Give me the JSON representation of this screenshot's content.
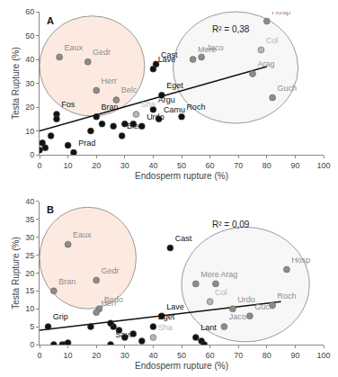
{
  "chart_data": [
    {
      "type": "scatter",
      "title": "A",
      "annotation": "R² = 0,38",
      "x_label": "Endosperm rupture (%)",
      "y_label": "Testa Rupture (%)",
      "x": [
        0,
        2,
        1,
        4,
        7,
        17,
        20,
        27,
        6,
        6,
        20,
        12,
        10,
        18,
        22,
        26,
        30,
        33,
        34,
        29,
        36,
        42,
        40,
        43,
        40,
        41,
        50,
        54,
        57,
        78,
        80,
        75,
        82
      ],
      "y": [
        2,
        3,
        5,
        8,
        41,
        39,
        27,
        23,
        17,
        15,
        16,
        1,
        4,
        10,
        13,
        12,
        13,
        13,
        17,
        8,
        12,
        15,
        19,
        25,
        36,
        38,
        16,
        40,
        41,
        44,
        56,
        34,
        24
      ],
      "labels": [
        null,
        null,
        null,
        null,
        "Eaux",
        "Gedr",
        "Herr",
        "Belc",
        "Fos",
        null,
        "Bran",
        "Prad",
        null,
        null,
        null,
        null,
        null,
        null,
        "Sha",
        "Bier",
        "Urdo",
        "Camu",
        "Argu",
        "Eget",
        "Lave",
        "Cast",
        "Roch",
        "Mere",
        "Jaco",
        "Col",
        "Hosp",
        "Arag",
        "Guch"
      ],
      "colors": [
        "#111111",
        "#111111",
        "#111111",
        "#111111",
        "#8c8c8c",
        "#8c8c8c",
        "#8c8c8c",
        "#8c8c8c",
        "#111111",
        "#111111",
        "#111111",
        "#111111",
        "#111111",
        "#111111",
        "#111111",
        "#111111",
        "#111111",
        "#111111",
        "#b5b5b5",
        "#111111",
        "#111111",
        "#111111",
        "#111111",
        "#111111",
        "#111111",
        "#111111",
        "#111111",
        "#8c8c8c",
        "#8c8c8c",
        "#b5b5b5",
        "#8c8c8c",
        "#8c8c8c",
        "#8c8c8c"
      ],
      "trend": {
        "x": [
          0,
          80
        ],
        "y": [
          10,
          37
        ]
      },
      "xlim": [
        0,
        100
      ],
      "xticks": [
        0,
        10,
        20,
        30,
        40,
        50,
        60,
        70,
        80,
        90,
        100
      ],
      "ylim": [
        0,
        60
      ],
      "yticks": [
        0,
        10,
        20,
        30,
        40,
        50,
        60
      ],
      "grid": false
    },
    {
      "type": "scatter",
      "title": "B",
      "annotation": "R² = 0,09",
      "x_label": "Endosperm rupture (%)",
      "y_label": "Testa Rupture (%)",
      "x": [
        10,
        20,
        5,
        21,
        20,
        3,
        5,
        8,
        9,
        10,
        25,
        43,
        46,
        40,
        40,
        26,
        30,
        33,
        36,
        18,
        25,
        28,
        55,
        57,
        58,
        55,
        62,
        60,
        68,
        65,
        74,
        82,
        87
      ],
      "y": [
        28,
        18,
        15,
        10,
        9,
        5,
        0,
        0,
        0,
        0.5,
        0,
        8,
        27,
        5,
        2,
        5,
        2,
        3,
        1,
        5,
        6,
        4,
        2,
        1,
        0,
        17,
        17,
        12,
        10,
        5,
        8,
        11,
        21
      ],
      "labels": [
        "Eaux",
        "Gedr",
        "Bran",
        "Bedo",
        "Herr",
        "Grip",
        null,
        null,
        null,
        null,
        "Savi",
        "Lave",
        "Cast",
        "Eget",
        "Sha",
        null,
        null,
        null,
        null,
        null,
        null,
        null,
        "Lant",
        null,
        null,
        "Mere",
        "Arag",
        "Col",
        "Urdo",
        "Jaco",
        "Guch",
        "Roch",
        "Hosp"
      ],
      "colors": [
        "#8c8c8c",
        "#8c8c8c",
        "#8c8c8c",
        "#8c8c8c",
        "#8c8c8c",
        "#111111",
        "#111111",
        "#111111",
        "#111111",
        "#111111",
        "#111111",
        "#111111",
        "#111111",
        "#111111",
        "#b5b5b5",
        "#111111",
        "#111111",
        "#111111",
        "#111111",
        "#111111",
        "#111111",
        "#111111",
        "#111111",
        "#111111",
        "#111111",
        "#8c8c8c",
        "#8c8c8c",
        "#b5b5b5",
        "#8c8c8c",
        "#8c8c8c",
        "#8c8c8c",
        "#8c8c8c",
        "#8c8c8c"
      ],
      "trend": {
        "x": [
          0,
          85
        ],
        "y": [
          4,
          12
        ]
      },
      "xlim": [
        0,
        100
      ],
      "xticks": [
        0,
        10,
        20,
        30,
        40,
        50,
        60,
        70,
        80,
        90,
        100
      ],
      "ylim": [
        0,
        40
      ],
      "yticks": [
        0,
        5,
        10,
        15,
        20,
        25,
        30,
        35,
        40
      ],
      "grid": false
    }
  ]
}
